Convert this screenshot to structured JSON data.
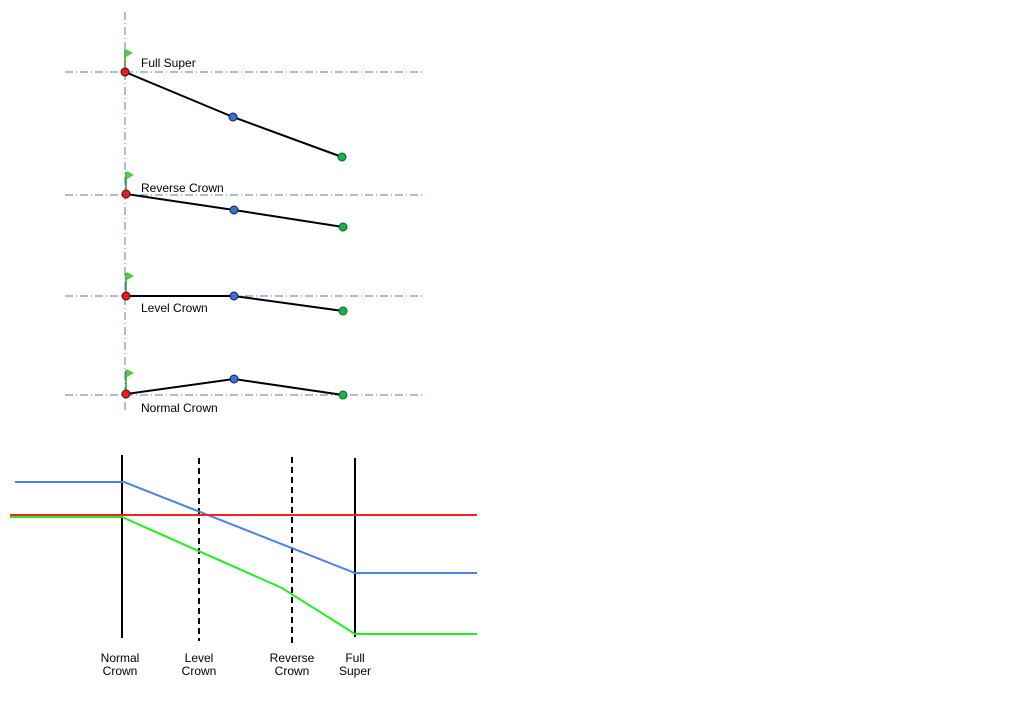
{
  "cross_sections": [
    {
      "label": "Full Super"
    },
    {
      "label": "Reverse Crown"
    },
    {
      "label": "Level Crown"
    },
    {
      "label": "Normal Crown"
    }
  ],
  "stations": [
    {
      "lines": [
        "Normal",
        "Crown"
      ]
    },
    {
      "lines": [
        "Level",
        "Crown"
      ]
    },
    {
      "lines": [
        "Reverse",
        "Crown"
      ]
    },
    {
      "lines": [
        "Full",
        "Super"
      ]
    }
  ]
}
